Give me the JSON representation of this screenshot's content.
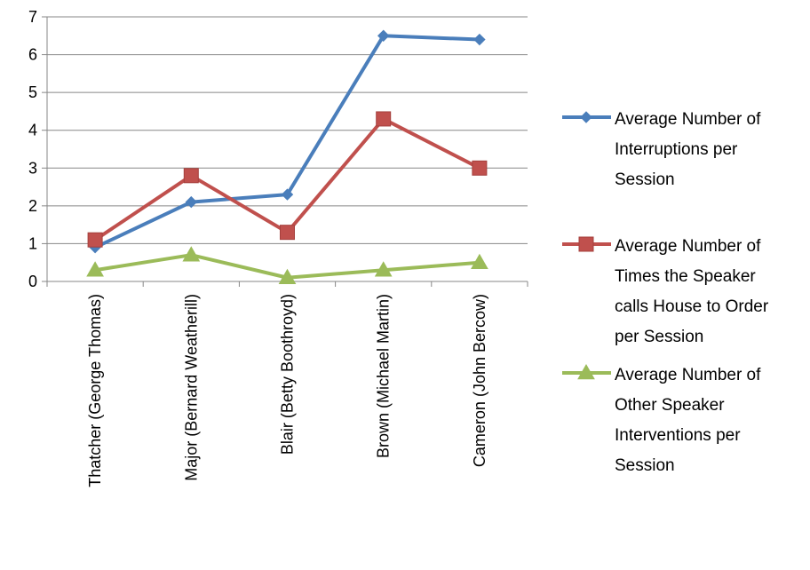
{
  "chart_data": {
    "type": "line",
    "title": "",
    "xlabel": "",
    "ylabel": "",
    "ylim": [
      0,
      7
    ],
    "yticks": [
      0,
      1,
      2,
      3,
      4,
      5,
      6,
      7
    ],
    "grid": true,
    "legend_position": "right",
    "categories": [
      "Thatcher (George Thomas)",
      "Major (Bernard Weatherill)",
      "Blair (Betty Boothroyd)",
      "Brown (Michael Martin)",
      "Cameron (John Bercow)"
    ],
    "series": [
      {
        "name": "Average Number of Interruptions per Session",
        "legend_lines": [
          "Average Number of",
          "Interruptions per",
          "Session"
        ],
        "values": [
          0.9,
          2.1,
          2.3,
          6.5,
          6.4
        ],
        "color": "#4a7ebb",
        "marker": "diamond"
      },
      {
        "name": "Average Number of Times the Speaker calls House to Order per Session",
        "legend_lines": [
          "Average Number of",
          "Times the Speaker",
          "calls House to Order",
          "per Session"
        ],
        "values": [
          1.1,
          2.8,
          1.3,
          4.3,
          3.0
        ],
        "color": "#c0504d",
        "marker": "square"
      },
      {
        "name": "Average Number of Other Speaker Interventions per Session",
        "legend_lines": [
          "Average Number of",
          "Other  Speaker",
          "Interventions per",
          "Session"
        ],
        "values": [
          0.3,
          0.7,
          0.1,
          0.3,
          0.5
        ],
        "color": "#9bbb59",
        "marker": "triangle"
      }
    ]
  }
}
